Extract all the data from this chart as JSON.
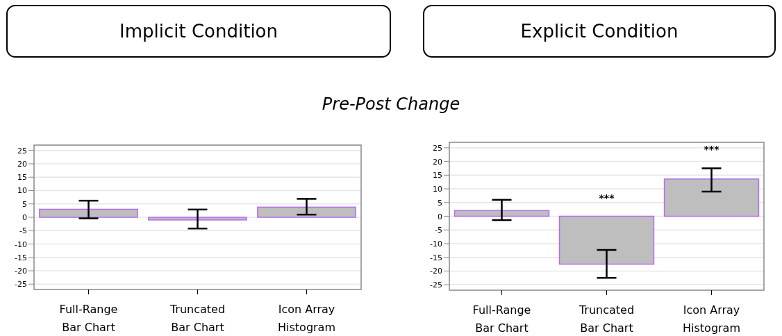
{
  "chart_data": [
    {
      "type": "bar",
      "title": "Implicit Condition",
      "subtitle": "Pre-Post Change",
      "categories": [
        "Full-Range\nBar Chart",
        "Truncated\nBar Chart",
        "Icon Array\nHistogram"
      ],
      "values": [
        3.0,
        -1.0,
        3.8
      ],
      "errors": [
        [
          -0.4,
          6.2
        ],
        [
          -4.2,
          2.9
        ],
        [
          1.0,
          6.9
        ]
      ],
      "color": "#bebebe",
      "ylim": [
        -27,
        27
      ],
      "yticks": [
        -25,
        -20,
        -15,
        -10,
        -5,
        0,
        5,
        10,
        15,
        20,
        25
      ],
      "grid": "y"
    },
    {
      "type": "bar",
      "title": "Explicit Condition",
      "categories": [
        "Full-Range\nBar Chart",
        "Truncated\nBar Chart",
        "Icon Array\nHistogram"
      ],
      "values": [
        2.1,
        -17.5,
        13.6
      ],
      "errors": [
        [
          -1.4,
          6.0
        ],
        [
          -22.5,
          -12.3
        ],
        [
          9.0,
          17.5
        ]
      ],
      "color": "#bebebe",
      "ylim": [
        -27,
        27
      ],
      "yticks": [
        -25,
        -20,
        -15,
        -10,
        -5,
        0,
        5,
        10,
        15,
        20,
        25
      ],
      "grid": "y",
      "annotations": [
        "***",
        "***"
      ]
    }
  ]
}
